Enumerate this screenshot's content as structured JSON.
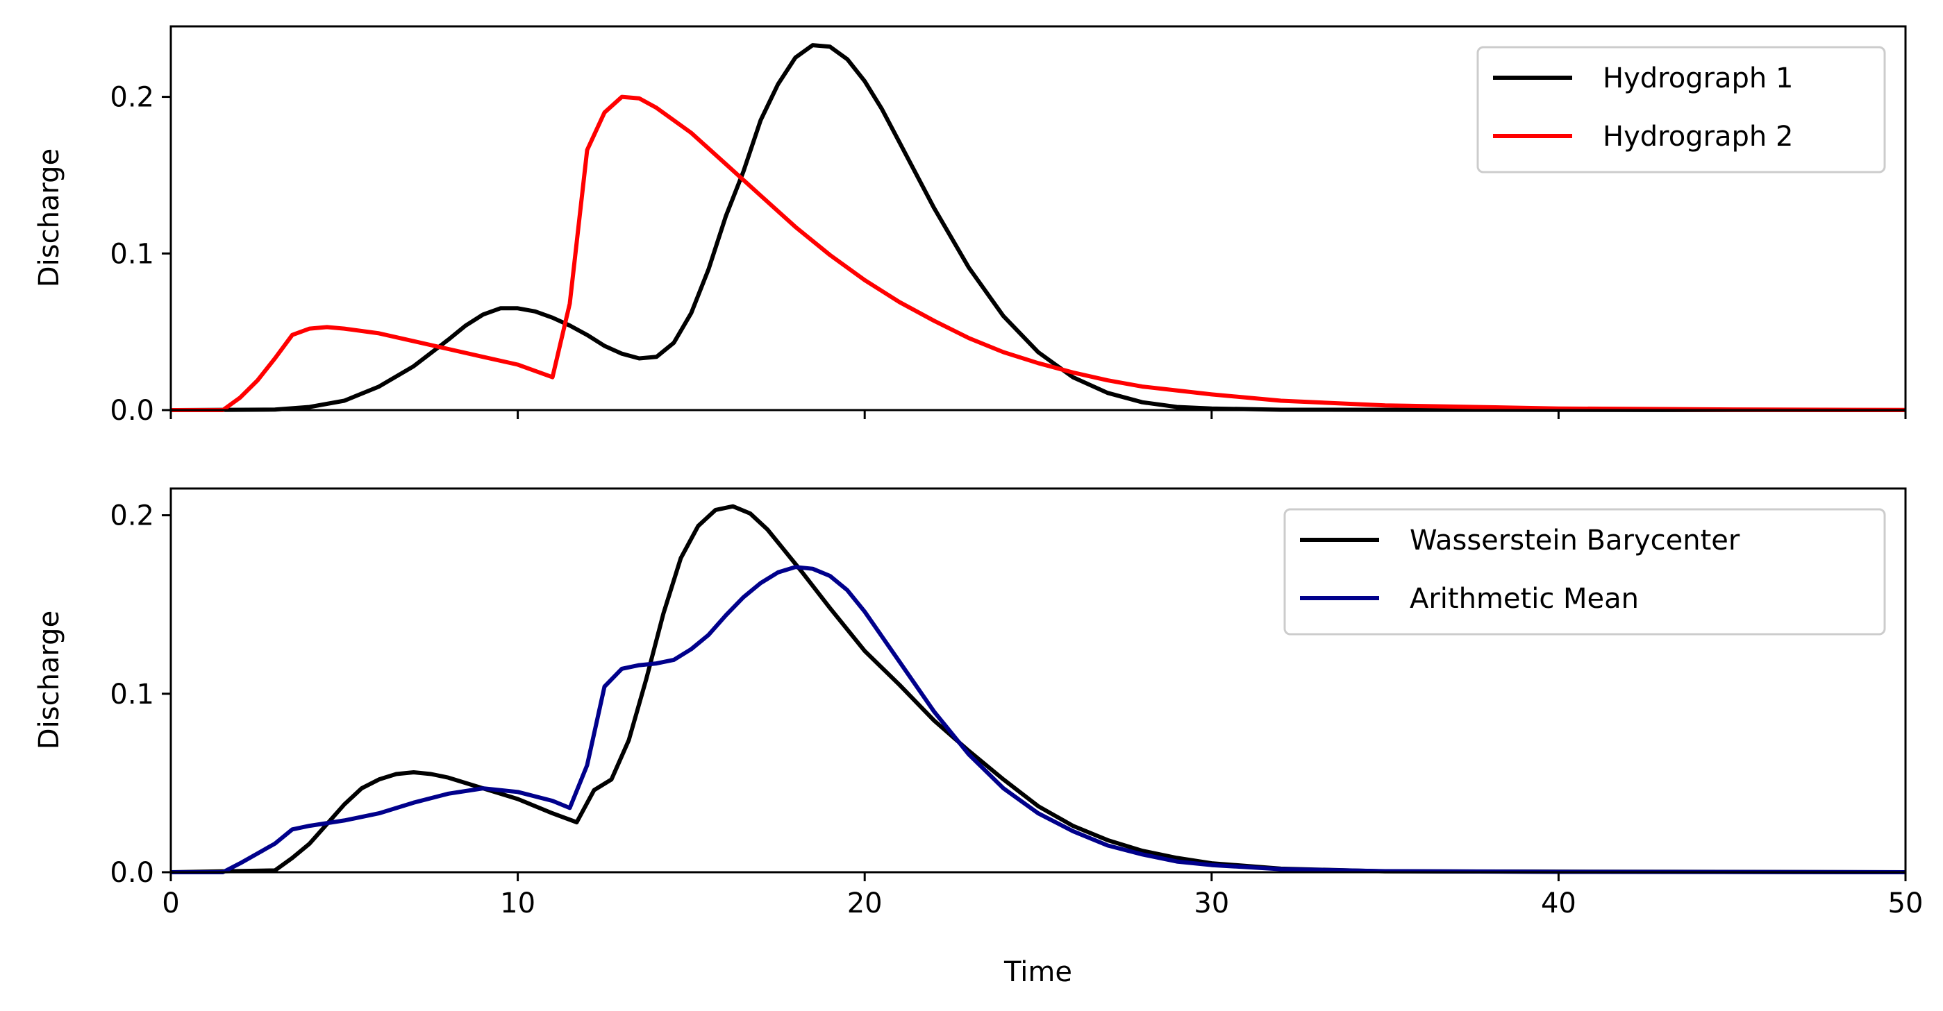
{
  "chart_data": [
    {
      "type": "line",
      "xlabel": "",
      "ylabel": "Discharge",
      "xlim": [
        0,
        50
      ],
      "ylim": [
        0,
        0.245
      ],
      "xticks": [
        0,
        10,
        20,
        30,
        40,
        50
      ],
      "xticklabels_visible": false,
      "yticks": [
        0.0,
        0.1,
        0.2
      ],
      "yticklabels": [
        "0.0",
        "0.1",
        "0.2"
      ],
      "grid": false,
      "legend_position": "top-right",
      "series": [
        {
          "name": "Hydrograph 1",
          "color": "#000000",
          "points": [
            [
              0,
              0
            ],
            [
              3,
              0.0003
            ],
            [
              4,
              0.002
            ],
            [
              5,
              0.006
            ],
            [
              6,
              0.015
            ],
            [
              7,
              0.028
            ],
            [
              8,
              0.045
            ],
            [
              8.5,
              0.054
            ],
            [
              9,
              0.061
            ],
            [
              9.5,
              0.065
            ],
            [
              10,
              0.065
            ],
            [
              10.5,
              0.063
            ],
            [
              11,
              0.059
            ],
            [
              11.5,
              0.054
            ],
            [
              12,
              0.048
            ],
            [
              12.5,
              0.041
            ],
            [
              13,
              0.036
            ],
            [
              13.5,
              0.033
            ],
            [
              14,
              0.034
            ],
            [
              14.5,
              0.043
            ],
            [
              15,
              0.062
            ],
            [
              15.5,
              0.09
            ],
            [
              16,
              0.124
            ],
            [
              16.5,
              0.152
            ],
            [
              17,
              0.185
            ],
            [
              17.5,
              0.208
            ],
            [
              18,
              0.225
            ],
            [
              18.5,
              0.233
            ],
            [
              19,
              0.232
            ],
            [
              19.5,
              0.224
            ],
            [
              20,
              0.21
            ],
            [
              20.5,
              0.192
            ],
            [
              21,
              0.171
            ],
            [
              22,
              0.129
            ],
            [
              23,
              0.091
            ],
            [
              24,
              0.06
            ],
            [
              25,
              0.037
            ],
            [
              26,
              0.021
            ],
            [
              27,
              0.011
            ],
            [
              28,
              0.005
            ],
            [
              29,
              0.002
            ],
            [
              30,
              0.001
            ],
            [
              32,
              0.0002
            ],
            [
              50,
              0
            ]
          ]
        },
        {
          "name": "Hydrograph 2",
          "color": "#ff0000",
          "points": [
            [
              0,
              0
            ],
            [
              1.5,
              0
            ],
            [
              2,
              0.008
            ],
            [
              2.5,
              0.019
            ],
            [
              3,
              0.033
            ],
            [
              3.5,
              0.048
            ],
            [
              4,
              0.052
            ],
            [
              4.5,
              0.053
            ],
            [
              5,
              0.052
            ],
            [
              6,
              0.049
            ],
            [
              7,
              0.044
            ],
            [
              8,
              0.039
            ],
            [
              9,
              0.034
            ],
            [
              10,
              0.029
            ],
            [
              11,
              0.021
            ],
            [
              11.5,
              0.068
            ],
            [
              12,
              0.166
            ],
            [
              12.5,
              0.19
            ],
            [
              13,
              0.2
            ],
            [
              13.5,
              0.199
            ],
            [
              14,
              0.193
            ],
            [
              15,
              0.177
            ],
            [
              16,
              0.157
            ],
            [
              17,
              0.137
            ],
            [
              18,
              0.117
            ],
            [
              19,
              0.099
            ],
            [
              20,
              0.083
            ],
            [
              21,
              0.069
            ],
            [
              22,
              0.057
            ],
            [
              23,
              0.046
            ],
            [
              24,
              0.037
            ],
            [
              25,
              0.03
            ],
            [
              26,
              0.024
            ],
            [
              27,
              0.019
            ],
            [
              28,
              0.015
            ],
            [
              30,
              0.01
            ],
            [
              32,
              0.006
            ],
            [
              35,
              0.003
            ],
            [
              40,
              0.001
            ],
            [
              45,
              0.0004
            ],
            [
              50,
              0.0001
            ]
          ]
        }
      ]
    },
    {
      "type": "line",
      "xlabel": "Time",
      "ylabel": "Discharge",
      "xlim": [
        0,
        50
      ],
      "ylim": [
        0,
        0.215
      ],
      "xticks": [
        0,
        10,
        20,
        30,
        40,
        50
      ],
      "xticklabels": [
        "0",
        "10",
        "20",
        "30",
        "40",
        "50"
      ],
      "yticks": [
        0.0,
        0.1,
        0.2
      ],
      "yticklabels": [
        "0.0",
        "0.1",
        "0.2"
      ],
      "grid": false,
      "legend_position": "top-right",
      "series": [
        {
          "name": "Wasserstein Barycenter",
          "color": "#000000",
          "points": [
            [
              0,
              0
            ],
            [
              3,
              0.001
            ],
            [
              3.5,
              0.008
            ],
            [
              4,
              0.016
            ],
            [
              4.5,
              0.027
            ],
            [
              5,
              0.038
            ],
            [
              5.5,
              0.047
            ],
            [
              6,
              0.052
            ],
            [
              6.5,
              0.055
            ],
            [
              7,
              0.056
            ],
            [
              7.5,
              0.055
            ],
            [
              8,
              0.053
            ],
            [
              9,
              0.047
            ],
            [
              10,
              0.041
            ],
            [
              11,
              0.033
            ],
            [
              11.7,
              0.028
            ],
            [
              12.2,
              0.046
            ],
            [
              12.7,
              0.052
            ],
            [
              13.2,
              0.074
            ],
            [
              13.7,
              0.108
            ],
            [
              14.2,
              0.145
            ],
            [
              14.7,
              0.176
            ],
            [
              15.2,
              0.194
            ],
            [
              15.7,
              0.203
            ],
            [
              16.2,
              0.205
            ],
            [
              16.7,
              0.201
            ],
            [
              17.2,
              0.192
            ],
            [
              17.7,
              0.18
            ],
            [
              18.2,
              0.168
            ],
            [
              19,
              0.148
            ],
            [
              20,
              0.124
            ],
            [
              21,
              0.105
            ],
            [
              22,
              0.085
            ],
            [
              23,
              0.068
            ],
            [
              24,
              0.052
            ],
            [
              25,
              0.037
            ],
            [
              26,
              0.026
            ],
            [
              27,
              0.018
            ],
            [
              28,
              0.012
            ],
            [
              29,
              0.008
            ],
            [
              30,
              0.005
            ],
            [
              32,
              0.002
            ],
            [
              35,
              0.0005
            ],
            [
              50,
              0
            ]
          ]
        },
        {
          "name": "Arithmetic Mean",
          "color": "#00008b",
          "points": [
            [
              0,
              0
            ],
            [
              1.5,
              0
            ],
            [
              2,
              0.005
            ],
            [
              3,
              0.016
            ],
            [
              3.5,
              0.024
            ],
            [
              4,
              0.026
            ],
            [
              5,
              0.029
            ],
            [
              6,
              0.033
            ],
            [
              7,
              0.039
            ],
            [
              8,
              0.044
            ],
            [
              9,
              0.047
            ],
            [
              10,
              0.045
            ],
            [
              11,
              0.04
            ],
            [
              11.5,
              0.036
            ],
            [
              12,
              0.06
            ],
            [
              12.5,
              0.104
            ],
            [
              13,
              0.114
            ],
            [
              13.5,
              0.116
            ],
            [
              14,
              0.117
            ],
            [
              14.5,
              0.119
            ],
            [
              15,
              0.125
            ],
            [
              15.5,
              0.133
            ],
            [
              16,
              0.144
            ],
            [
              16.5,
              0.154
            ],
            [
              17,
              0.162
            ],
            [
              17.5,
              0.168
            ],
            [
              18,
              0.171
            ],
            [
              18.5,
              0.17
            ],
            [
              19,
              0.166
            ],
            [
              19.5,
              0.158
            ],
            [
              20,
              0.146
            ],
            [
              21,
              0.118
            ],
            [
              22,
              0.09
            ],
            [
              23,
              0.066
            ],
            [
              24,
              0.047
            ],
            [
              25,
              0.033
            ],
            [
              26,
              0.023
            ],
            [
              27,
              0.015
            ],
            [
              28,
              0.01
            ],
            [
              29,
              0.006
            ],
            [
              30,
              0.004
            ],
            [
              32,
              0.0017
            ],
            [
              35,
              0.0006
            ],
            [
              40,
              0.0002
            ],
            [
              50,
              0
            ]
          ]
        }
      ]
    }
  ]
}
